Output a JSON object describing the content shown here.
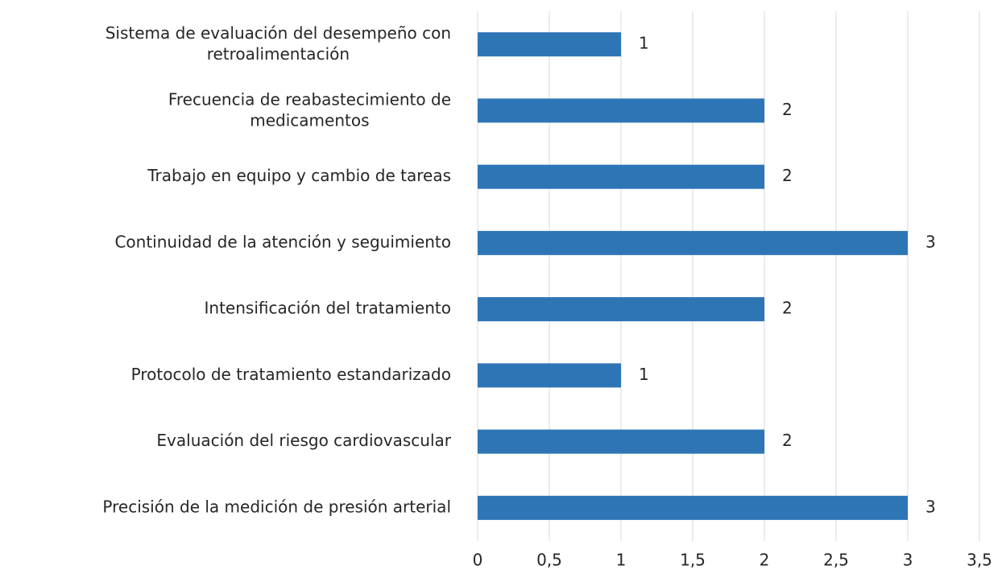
{
  "chart_data": {
    "type": "bar",
    "orientation": "horizontal",
    "categories": [
      "Sistema de evaluación del desempeño con retroalimentación",
      "Frecuencia de reabastecimiento de medicamentos",
      "Trabajo en equipo y cambio de tareas",
      "Continuidad de la atención y seguimiento",
      "Intensificación del tratamiento",
      "Protocolo de tratamiento estandarizado",
      "Evaluación del riesgo cardiovascular",
      "Precisión de la medición de presión arterial"
    ],
    "values": [
      1,
      2,
      2,
      3,
      2,
      1,
      2,
      3
    ],
    "color": "#2e75b6",
    "xlim": [
      0,
      3.5
    ],
    "xticks": [
      0,
      {
        "value": 0.5,
        "label": "0,5"
      },
      1,
      {
        "value": 1.5,
        "label": "1,5"
      },
      2,
      {
        "value": 2.5,
        "label": "2,5"
      },
      3,
      {
        "value": 3.5,
        "label": "3,5"
      }
    ],
    "grid": true
  }
}
